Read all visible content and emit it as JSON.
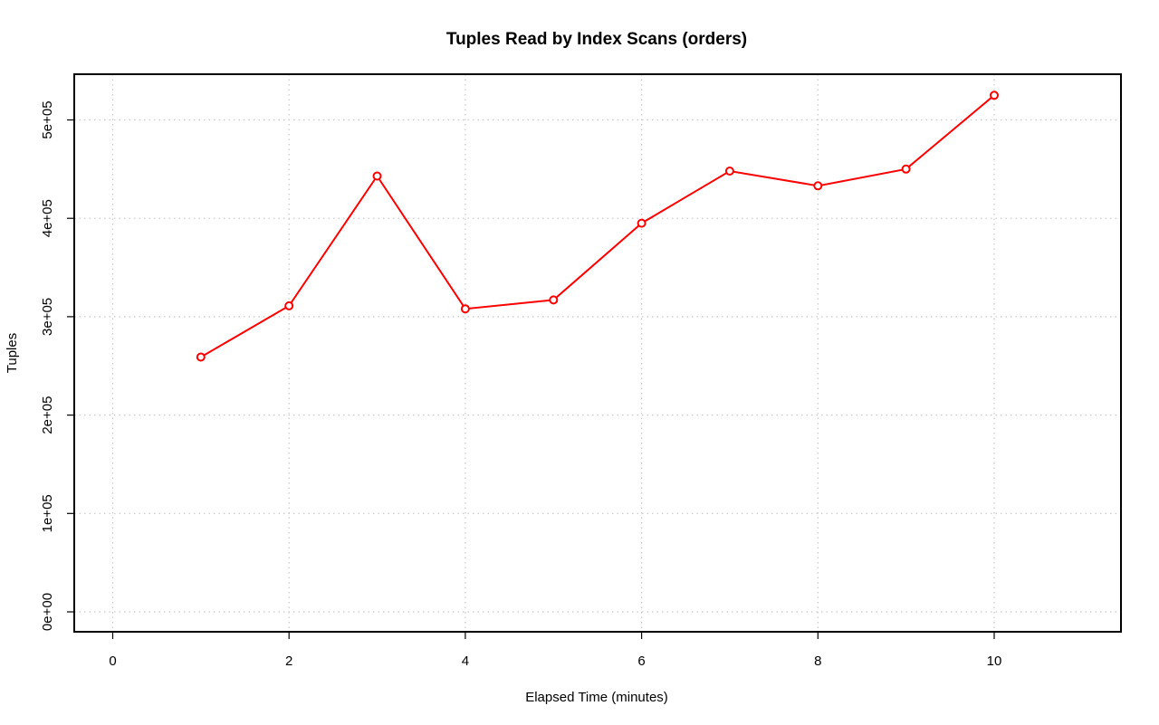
{
  "chart_data": {
    "type": "line",
    "title": "Tuples Read by Index Scans (orders)",
    "xlabel": "Elapsed Time (minutes)",
    "ylabel": "Tuples",
    "xlim": [
      0,
      11
    ],
    "ylim": [
      0,
      530000
    ],
    "x_ticks": [
      {
        "value": 0,
        "label": "0"
      },
      {
        "value": 2,
        "label": "2"
      },
      {
        "value": 4,
        "label": "4"
      },
      {
        "value": 6,
        "label": "6"
      },
      {
        "value": 8,
        "label": "8"
      },
      {
        "value": 10,
        "label": "10"
      }
    ],
    "y_ticks": [
      {
        "value": 0,
        "label": "0e+00"
      },
      {
        "value": 100000,
        "label": "1e+05"
      },
      {
        "value": 200000,
        "label": "2e+05"
      },
      {
        "value": 300000,
        "label": "3e+05"
      },
      {
        "value": 400000,
        "label": "4e+05"
      },
      {
        "value": 500000,
        "label": "5e+05"
      }
    ],
    "grid": true,
    "legend": "none",
    "series": [
      {
        "color": "#ff0000",
        "x": [
          1,
          2,
          3,
          4,
          5,
          6,
          7,
          8,
          9,
          10
        ],
        "values": [
          259000,
          311000,
          443000,
          308000,
          317000,
          395000,
          448000,
          433000,
          450000,
          525000
        ]
      }
    ]
  }
}
